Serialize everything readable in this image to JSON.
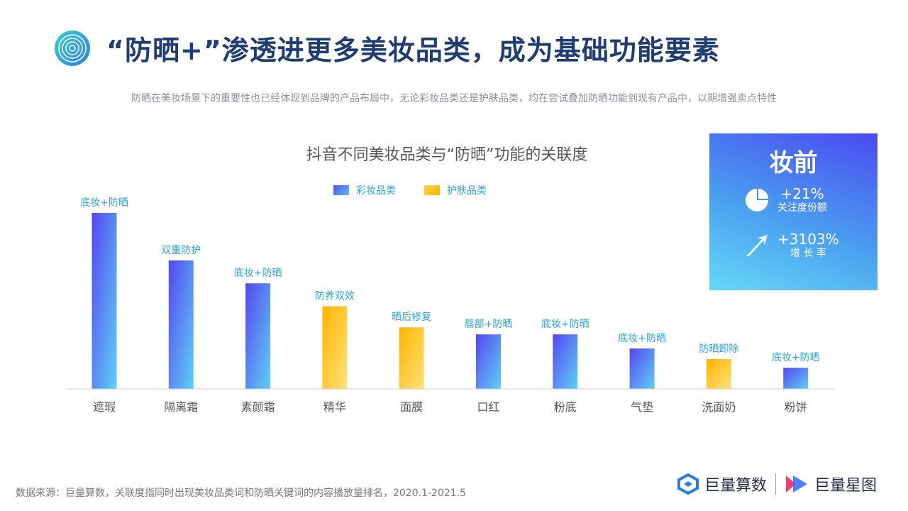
{
  "header": {
    "title": "“防晒+”渗透进更多美妆品类，成为基础功能要素",
    "subtitle": "防晒在美妆场景下的重要性也已经体现到品牌的产品布局中，无论彩妆品类还是护肤品类，均在尝试叠加防晒功能到现有产品中，以期增强卖点特性"
  },
  "chart_data": {
    "type": "bar",
    "title": "抖音不同美妆品类与“防晒”功能的关联度",
    "categories": [
      "遮瑕",
      "隔离霜",
      "素颜霜",
      "精华",
      "面膜",
      "口红",
      "粉底",
      "气垫",
      "洗面奶",
      "粉饼"
    ],
    "values": [
      100,
      73,
      60,
      47,
      35,
      31,
      31,
      23,
      17,
      12
    ],
    "value_scale_note": "relative index",
    "series_type": [
      "彩妆品类",
      "彩妆品类",
      "彩妆品类",
      "护肤品类",
      "护肤品类",
      "彩妆品类",
      "彩妆品类",
      "彩妆品类",
      "护肤品类",
      "彩妆品类"
    ],
    "annotations": [
      "底妆+防晒",
      "双重防护",
      "底妆+防晒",
      "防养双效",
      "晒后修复",
      "唇部+防晒",
      "底妆+防晒",
      "底妆+防晒",
      "防晒卸除",
      "底妆+防晒"
    ],
    "legend": [
      {
        "name": "彩妆品类",
        "color": "#5b4cf0"
      },
      {
        "name": "护肤品类",
        "color": "#ffc107"
      }
    ],
    "legend_position": "top-center",
    "grid": false
  },
  "stat_box": {
    "title": "妆前",
    "items": [
      {
        "value": "+21%",
        "label": "关注度份额",
        "icon": "pie-chart-icon"
      },
      {
        "value": "+3103%",
        "label": "增 长 率",
        "icon": "arrow-up-right-icon"
      }
    ]
  },
  "footer": {
    "source": "数据来源：巨量算数，关联度指同时出现美妆品类词和防晒关键词的内容播放量排名，2020.1-2021.5",
    "brand1": "巨量算数",
    "brand2": "巨量星图"
  }
}
